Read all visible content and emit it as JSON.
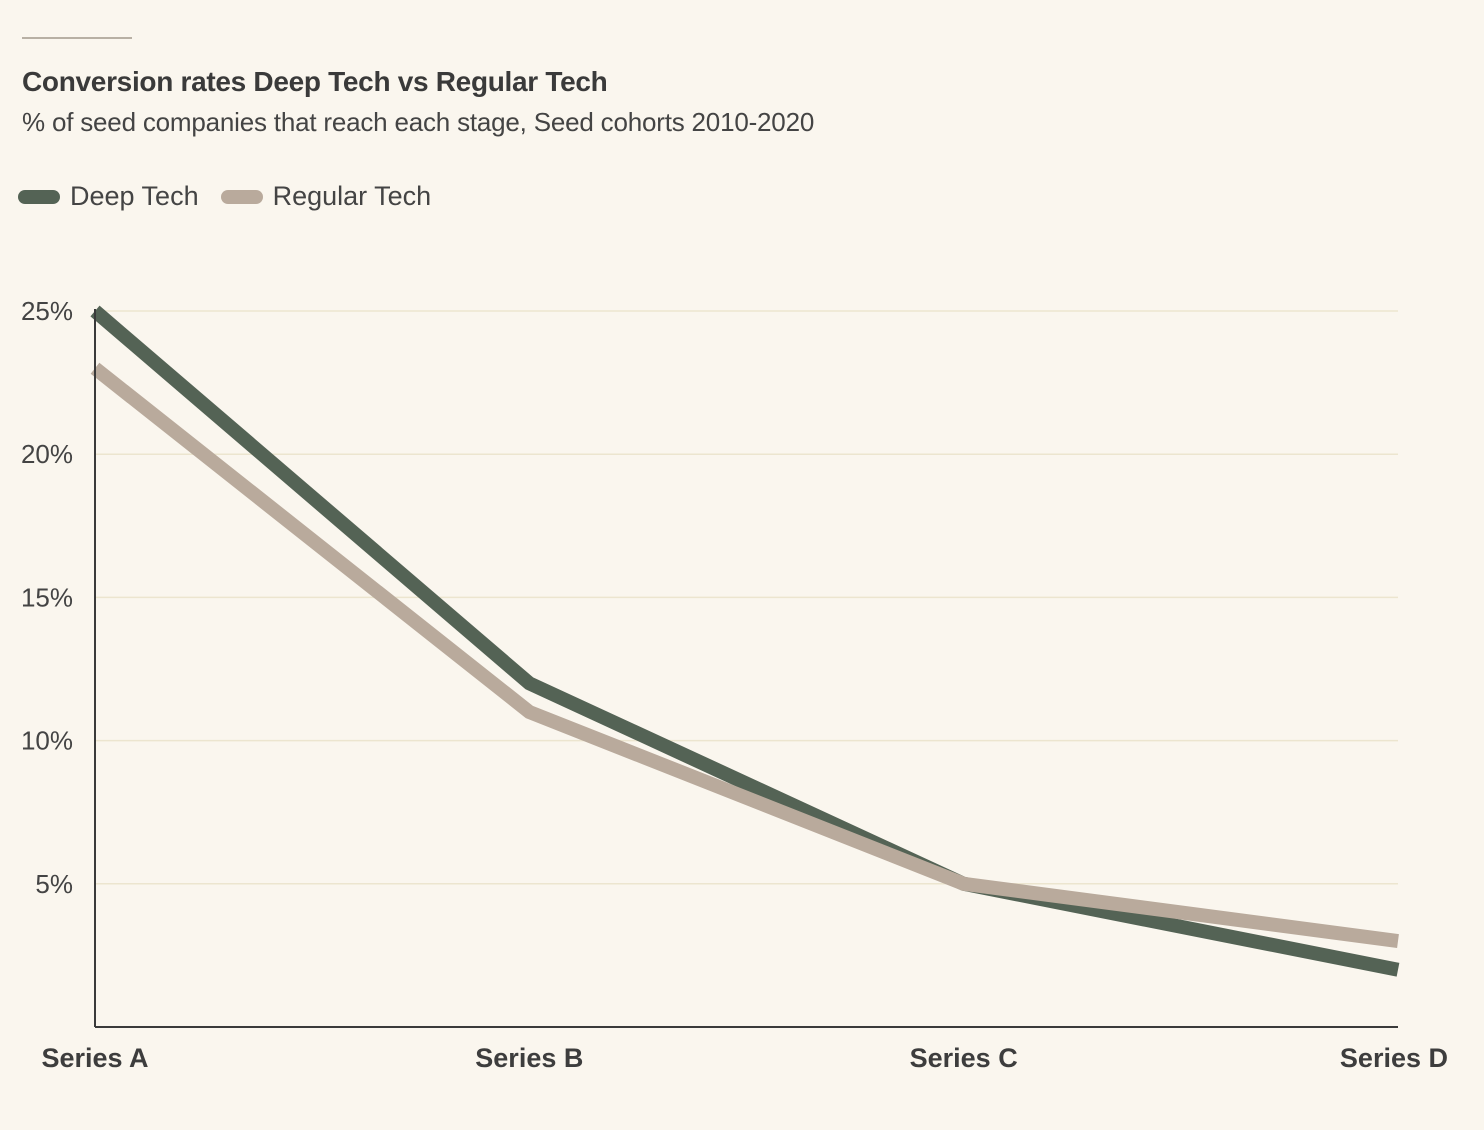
{
  "chart_data": {
    "type": "line",
    "title": "Conversion rates Deep Tech vs Regular Tech",
    "subtitle": "% of seed companies that reach each stage, Seed cohorts 2010-2020",
    "categories": [
      "Series A",
      "Series B",
      "Series C",
      "Series D"
    ],
    "series": [
      {
        "name": "Deep Tech",
        "values": [
          25,
          12,
          5,
          2
        ],
        "color": "#546355"
      },
      {
        "name": "Regular Tech",
        "values": [
          23,
          11,
          5,
          3
        ],
        "color": "#b9aa9c"
      }
    ],
    "yticks": [
      "5%",
      "10%",
      "15%",
      "20%",
      "25%"
    ],
    "ytick_values": [
      5,
      10,
      15,
      20,
      25
    ],
    "ylim": [
      0,
      25
    ],
    "grid": true,
    "legend_position": "top-left"
  },
  "colors": {
    "background": "#faf6ee",
    "gridline": "#ece5cf",
    "axis": "#3a3a3a"
  }
}
